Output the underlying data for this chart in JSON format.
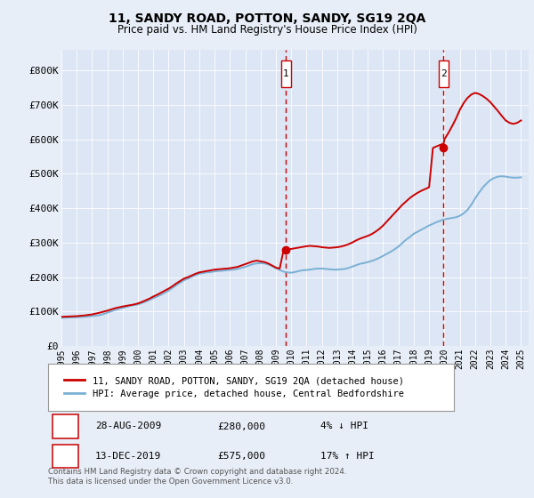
{
  "title": "11, SANDY ROAD, POTTON, SANDY, SG19 2QA",
  "subtitle": "Price paid vs. HM Land Registry's House Price Index (HPI)",
  "background_color": "#e8eef7",
  "plot_bg_color": "#dce6f5",
  "legend_label_red": "11, SANDY ROAD, POTTON, SANDY, SG19 2QA (detached house)",
  "legend_label_blue": "HPI: Average price, detached house, Central Bedfordshire",
  "footnote": "Contains HM Land Registry data © Crown copyright and database right 2024.\nThis data is licensed under the Open Government Licence v3.0.",
  "annotation1_date": "28-AUG-2009",
  "annotation1_price": "£280,000",
  "annotation1_hpi": "4% ↓ HPI",
  "annotation2_date": "13-DEC-2019",
  "annotation2_price": "£575,000",
  "annotation2_hpi": "17% ↑ HPI",
  "xmin": 1995.0,
  "xmax": 2025.5,
  "ymin": 0,
  "ymax": 860000,
  "yticks": [
    0,
    100000,
    200000,
    300000,
    400000,
    500000,
    600000,
    700000,
    800000
  ],
  "ytick_labels": [
    "£0",
    "£100K",
    "£200K",
    "£300K",
    "£400K",
    "£500K",
    "£600K",
    "£700K",
    "£800K"
  ],
  "xticks": [
    1995,
    1996,
    1997,
    1998,
    1999,
    2000,
    2001,
    2002,
    2003,
    2004,
    2005,
    2006,
    2007,
    2008,
    2009,
    2010,
    2011,
    2012,
    2013,
    2014,
    2015,
    2016,
    2017,
    2018,
    2019,
    2020,
    2021,
    2022,
    2023,
    2024,
    2025
  ],
  "vline1_x": 2009.65,
  "vline2_x": 2019.95,
  "point1_x": 2009.65,
  "point1_y": 280000,
  "point2_x": 2019.95,
  "point2_y": 575000,
  "hpi_x": [
    1995,
    1995.25,
    1995.5,
    1995.75,
    1996,
    1996.25,
    1996.5,
    1996.75,
    1997,
    1997.25,
    1997.5,
    1997.75,
    1998,
    1998.25,
    1998.5,
    1998.75,
    1999,
    1999.25,
    1999.5,
    1999.75,
    2000,
    2000.25,
    2000.5,
    2000.75,
    2001,
    2001.25,
    2001.5,
    2001.75,
    2002,
    2002.25,
    2002.5,
    2002.75,
    2003,
    2003.25,
    2003.5,
    2003.75,
    2004,
    2004.25,
    2004.5,
    2004.75,
    2005,
    2005.25,
    2005.5,
    2005.75,
    2006,
    2006.25,
    2006.5,
    2006.75,
    2007,
    2007.25,
    2007.5,
    2007.75,
    2008,
    2008.25,
    2008.5,
    2008.75,
    2009,
    2009.25,
    2009.5,
    2009.75,
    2010,
    2010.25,
    2010.5,
    2010.75,
    2011,
    2011.25,
    2011.5,
    2011.75,
    2012,
    2012.25,
    2012.5,
    2012.75,
    2013,
    2013.25,
    2013.5,
    2013.75,
    2014,
    2014.25,
    2014.5,
    2014.75,
    2015,
    2015.25,
    2015.5,
    2015.75,
    2016,
    2016.25,
    2016.5,
    2016.75,
    2017,
    2017.25,
    2017.5,
    2017.75,
    2018,
    2018.25,
    2018.5,
    2018.75,
    2019,
    2019.25,
    2019.5,
    2019.75,
    2020,
    2020.25,
    2020.5,
    2020.75,
    2021,
    2021.25,
    2021.5,
    2021.75,
    2022,
    2022.25,
    2022.5,
    2022.75,
    2023,
    2023.25,
    2023.5,
    2023.75,
    2024,
    2024.25,
    2024.5,
    2024.75,
    2025
  ],
  "hpi_y": [
    82000,
    82500,
    83000,
    83500,
    84000,
    84500,
    85000,
    86000,
    87000,
    88500,
    90000,
    93000,
    97000,
    101000,
    105000,
    108000,
    111000,
    114000,
    117000,
    119000,
    121000,
    125000,
    129000,
    134000,
    139000,
    144000,
    149000,
    155000,
    161000,
    169000,
    177000,
    184000,
    191000,
    196000,
    201000,
    206000,
    210000,
    212000,
    214000,
    215000,
    217000,
    218000,
    219000,
    220000,
    221000,
    222000,
    224000,
    227000,
    230000,
    234000,
    238000,
    240000,
    241000,
    240000,
    237000,
    232000,
    226000,
    221000,
    216000,
    214000,
    213000,
    215000,
    218000,
    220000,
    221000,
    222000,
    224000,
    225000,
    225000,
    224000,
    223000,
    222000,
    222000,
    223000,
    224000,
    227000,
    231000,
    235000,
    239000,
    241000,
    244000,
    247000,
    251000,
    256000,
    262000,
    268000,
    274000,
    281000,
    289000,
    299000,
    309000,
    317000,
    326000,
    332000,
    338000,
    344000,
    350000,
    355000,
    360000,
    364000,
    368000,
    370000,
    372000,
    374000,
    378000,
    385000,
    395000,
    410000,
    428000,
    445000,
    460000,
    472000,
    482000,
    488000,
    492000,
    493000,
    492000,
    490000,
    489000,
    489000,
    490000
  ],
  "red_x": [
    1995,
    1995.25,
    1995.5,
    1995.75,
    1996,
    1996.25,
    1996.5,
    1996.75,
    1997,
    1997.25,
    1997.5,
    1997.75,
    1998,
    1998.25,
    1998.5,
    1998.75,
    1999,
    1999.25,
    1999.5,
    1999.75,
    2000,
    2000.25,
    2000.5,
    2000.75,
    2001,
    2001.25,
    2001.5,
    2001.75,
    2002,
    2002.25,
    2002.5,
    2002.75,
    2003,
    2003.25,
    2003.5,
    2003.75,
    2004,
    2004.25,
    2004.5,
    2004.75,
    2005,
    2005.25,
    2005.5,
    2005.75,
    2006,
    2006.25,
    2006.5,
    2006.75,
    2007,
    2007.25,
    2007.5,
    2007.75,
    2008,
    2008.25,
    2008.5,
    2008.75,
    2009,
    2009.25,
    2009.5,
    2009.65,
    2010,
    2010.25,
    2010.5,
    2010.75,
    2011,
    2011.25,
    2011.5,
    2011.75,
    2012,
    2012.25,
    2012.5,
    2012.75,
    2013,
    2013.25,
    2013.5,
    2013.75,
    2014,
    2014.25,
    2014.5,
    2014.75,
    2015,
    2015.25,
    2015.5,
    2015.75,
    2016,
    2016.25,
    2016.5,
    2016.75,
    2017,
    2017.25,
    2017.5,
    2017.75,
    2018,
    2018.25,
    2018.5,
    2018.75,
    2019,
    2019.25,
    2019.5,
    2019.95,
    2020,
    2020.25,
    2020.5,
    2020.75,
    2021,
    2021.25,
    2021.5,
    2021.75,
    2022,
    2022.25,
    2022.5,
    2022.75,
    2023,
    2023.25,
    2023.5,
    2023.75,
    2024,
    2024.25,
    2024.5,
    2024.75,
    2025
  ],
  "red_y": [
    85000,
    85500,
    86000,
    86500,
    87000,
    88000,
    89000,
    90500,
    92000,
    94500,
    97000,
    100000,
    103000,
    106500,
    110000,
    112500,
    115000,
    117000,
    119000,
    121000,
    124000,
    128000,
    133000,
    138000,
    144000,
    149000,
    155000,
    161000,
    167000,
    174000,
    182000,
    189000,
    196000,
    200000,
    205000,
    210000,
    214000,
    216000,
    218000,
    220000,
    222000,
    223000,
    224000,
    225000,
    226000,
    228000,
    230000,
    234000,
    238000,
    242000,
    246000,
    248000,
    246000,
    244000,
    240000,
    234000,
    228000,
    225000,
    278000,
    280000,
    282000,
    284000,
    286000,
    288000,
    290000,
    291000,
    290000,
    289000,
    287000,
    286000,
    285000,
    286000,
    287000,
    289000,
    292000,
    296000,
    301000,
    307000,
    312000,
    316000,
    320000,
    325000,
    332000,
    340000,
    350000,
    362000,
    374000,
    386000,
    398000,
    410000,
    420000,
    430000,
    438000,
    445000,
    451000,
    456000,
    461000,
    575000,
    580000,
    588000,
    600000,
    618000,
    638000,
    660000,
    685000,
    705000,
    720000,
    730000,
    735000,
    732000,
    726000,
    718000,
    708000,
    695000,
    682000,
    668000,
    655000,
    648000,
    645000,
    648000,
    655000
  ],
  "red_color": "#cc0000",
  "blue_color": "#7ab0d4",
  "vline_color": "#cc0000"
}
